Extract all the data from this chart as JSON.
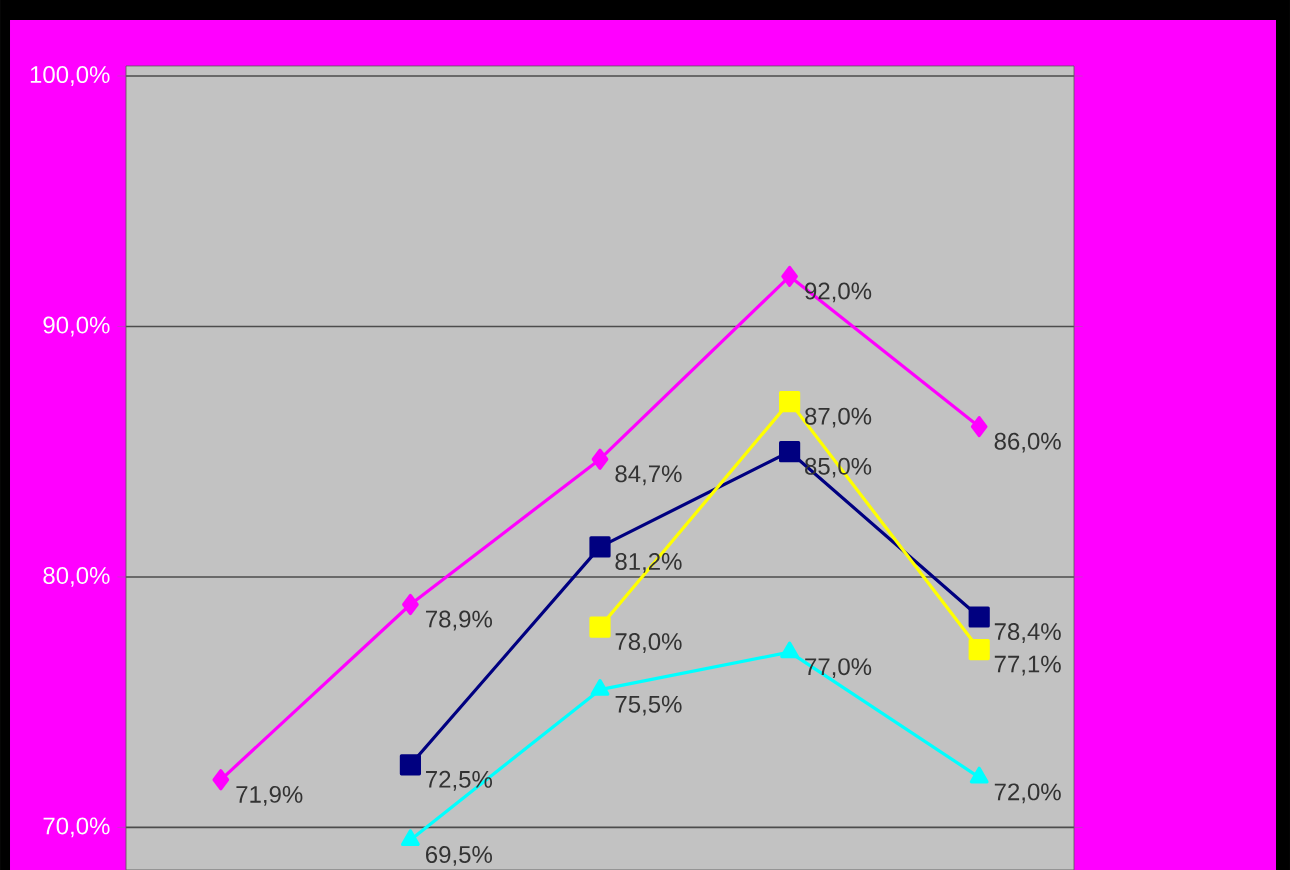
{
  "chart_data": {
    "type": "line",
    "categories": [
      null,
      null,
      null,
      null,
      null
    ],
    "series": [
      {
        "color": "#ff00ff",
        "marker": "diamond",
        "values": [
          71.9,
          78.9,
          84.7,
          92.0,
          86.0
        ],
        "value_labels": [
          "71,9%",
          "78,9%",
          "84,7%",
          "92,0%",
          "86,0%"
        ]
      },
      {
        "color": "#000080",
        "marker": "square",
        "values": [
          null,
          72.5,
          81.2,
          85.0,
          78.4
        ],
        "value_labels": [
          null,
          "72,5%",
          "81,2%",
          "85,0%",
          "78,4%"
        ]
      },
      {
        "color": "#ffff00",
        "marker": "square",
        "values": [
          null,
          null,
          78.0,
          87.0,
          77.1
        ],
        "value_labels": [
          null,
          null,
          "78,0%",
          "87,0%",
          "77,1%"
        ]
      },
      {
        "color": "#00ffff",
        "marker": "triangle",
        "values": [
          null,
          69.5,
          75.5,
          77.0,
          72.0
        ],
        "value_labels": [
          null,
          "69,5%",
          "75,5%",
          "77,0%",
          "72,0%"
        ]
      }
    ],
    "ylim": [
      68.3,
      100.4
    ],
    "yticks": [
      {
        "value": 70,
        "label": "70,0%"
      },
      {
        "value": 80,
        "label": "80,0%"
      },
      {
        "value": 90,
        "label": "90,0%"
      },
      {
        "value": 100,
        "label": "100,0%"
      }
    ],
    "grid": "y",
    "tick_labels": "y"
  }
}
